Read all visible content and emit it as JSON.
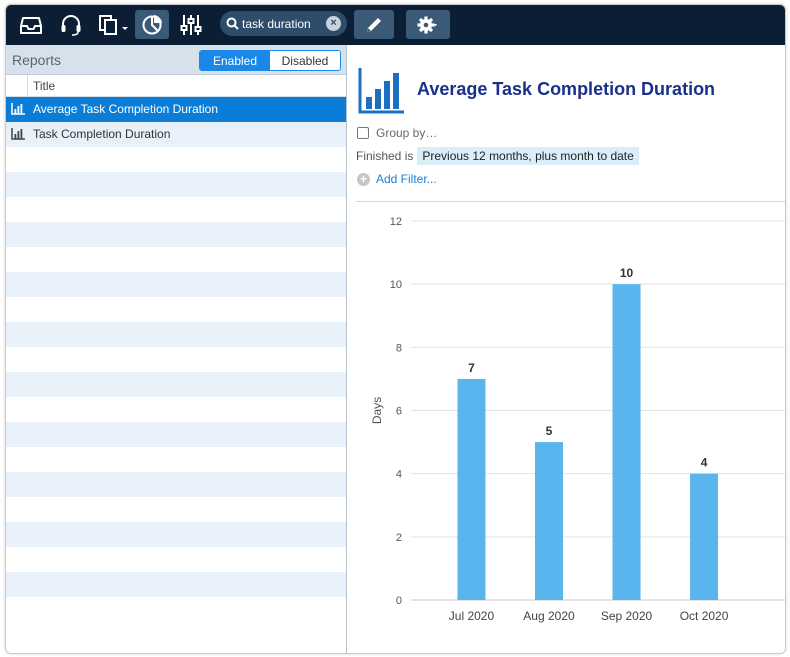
{
  "toolbar": {
    "icons": [
      "inbox-icon",
      "headset-icon",
      "documents-icon",
      "pie-chart-icon",
      "sliders-icon"
    ],
    "search_value": "task duration",
    "edit_icon": "pencil-icon",
    "settings_icon": "gear-icon"
  },
  "sidebar": {
    "title": "Reports",
    "toggle": {
      "enabled_label": "Enabled",
      "disabled_label": "Disabled",
      "selected": "Enabled"
    },
    "column_title": "Title",
    "items": [
      {
        "label": "Average Task Completion Duration",
        "icon": "bar-chart-icon",
        "selected": true
      },
      {
        "label": "Task Completion Duration",
        "icon": "bar-chart-icon",
        "selected": false
      }
    ]
  },
  "report": {
    "title": "Average Task Completion Duration",
    "group_by_label": "Group by…",
    "filter_field": "Finished is",
    "filter_value": "Previous 12 months, plus month to date",
    "add_filter_label": "Add Filter..."
  },
  "colors": {
    "toolbar": "#0b1e33",
    "accent": "#1a88e8",
    "bar": "#5ab4ee",
    "title": "#1a2f8a"
  },
  "chart_data": {
    "type": "bar",
    "categories": [
      "Jul 2020",
      "Aug 2020",
      "Sep 2020",
      "Oct 2020"
    ],
    "values": [
      7,
      5,
      10,
      4
    ],
    "ylabel": "Days",
    "xlabel": "",
    "title": "",
    "ylim": [
      0,
      12
    ],
    "yticks": [
      0,
      2,
      4,
      6,
      8,
      10,
      12
    ],
    "data_labels": true,
    "grid": true,
    "legend": "none"
  }
}
